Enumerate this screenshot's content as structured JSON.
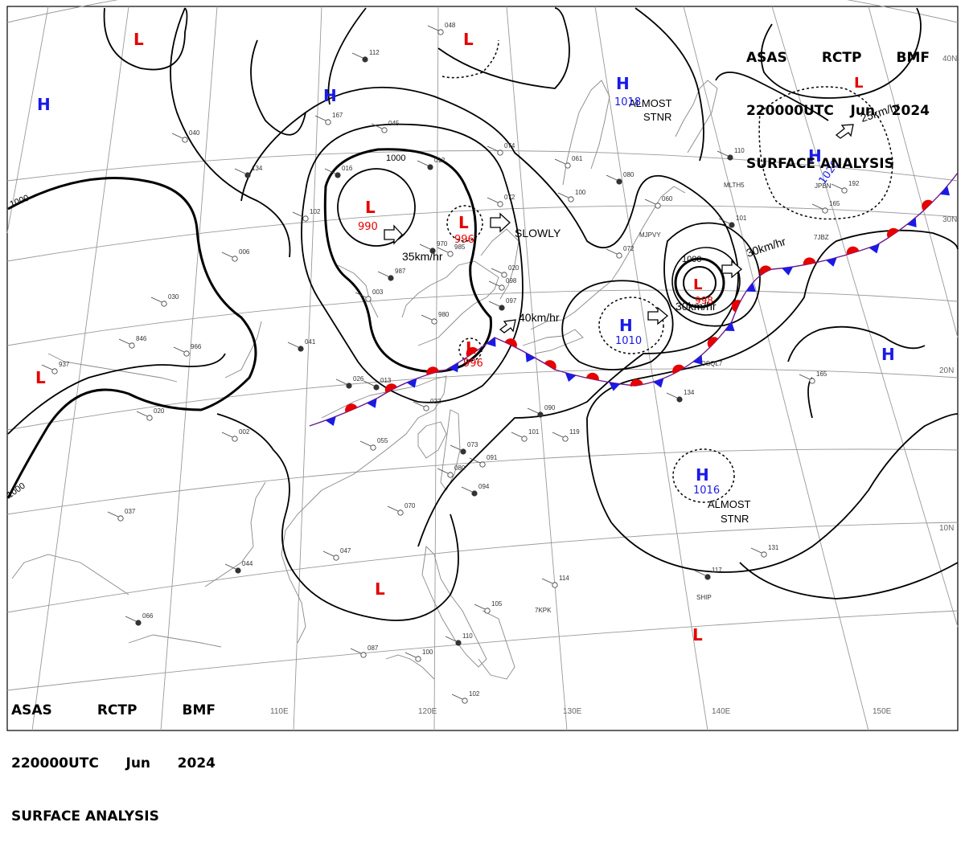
{
  "header": {
    "line1": [
      "ASAS",
      "RCTP",
      "BMF"
    ],
    "line2": [
      "220000UTC",
      "Jun",
      "2024"
    ],
    "line3": "SURFACE ANALYSIS"
  },
  "colors": {
    "high": "#1a1ae6",
    "low": "#e60000",
    "front_warm": "#e60000",
    "front_cold": "#1a1ae6",
    "isobar": "#000000",
    "grid": "#888888",
    "coast": "#888888"
  },
  "longitude_labels": [
    "110E",
    "120E",
    "130E",
    "140E",
    "150E"
  ],
  "latitude_labels": [
    "40N",
    "30N",
    "20N",
    "10N"
  ],
  "isobar_labels": [
    "1000",
    "1000",
    "1000",
    "1000"
  ],
  "pressure_centers": {
    "highs": [
      {
        "symbol": "H",
        "value": ""
      },
      {
        "symbol": "H",
        "value": ""
      },
      {
        "symbol": "H",
        "value": "1018"
      },
      {
        "symbol": "H",
        "value": "1020"
      },
      {
        "symbol": "H",
        "value": "1010"
      },
      {
        "symbol": "H",
        "value": ""
      },
      {
        "symbol": "H",
        "value": "1016"
      }
    ],
    "lows": [
      {
        "symbol": "L",
        "value": ""
      },
      {
        "symbol": "L",
        "value": ""
      },
      {
        "symbol": "L",
        "value": ""
      },
      {
        "symbol": "L",
        "value": "990"
      },
      {
        "symbol": "L",
        "value": "996"
      },
      {
        "symbol": "L",
        "value": "996"
      },
      {
        "symbol": "L",
        "value": "998"
      },
      {
        "symbol": "L",
        "value": ""
      },
      {
        "symbol": "L",
        "value": ""
      },
      {
        "symbol": "L",
        "value": ""
      }
    ]
  },
  "movement_labels": [
    "35km/hr",
    "SLOWLY",
    "40km/hr",
    "30km/hr",
    "30km/hr",
    "25km/hr"
  ],
  "status_labels": [
    {
      "line1": "ALMOST",
      "line2": "STNR"
    },
    {
      "line1": "ALMOST",
      "line2": "STNR"
    }
  ],
  "station_codes": [
    "MLTH5",
    "JPBN",
    "7JBZ",
    "MJPVY",
    "DSQL7",
    "7KPK",
    "SHIP"
  ],
  "station_values": [
    "112",
    "048",
    "040",
    "134",
    "102",
    "167",
    "016",
    "045",
    "074",
    "012",
    "072",
    "061",
    "080",
    "100",
    "060",
    "110",
    "192",
    "165",
    "970",
    "985",
    "020",
    "987",
    "003",
    "098",
    "097",
    "980",
    "072",
    "101",
    "846",
    "966",
    "041",
    "030",
    "020",
    "026",
    "022",
    "055",
    "090",
    "101",
    "119",
    "073",
    "091",
    "080",
    "094",
    "070",
    "047",
    "044",
    "937",
    "037",
    "066",
    "087",
    "100",
    "110",
    "105",
    "102",
    "134",
    "165",
    "114",
    "117",
    "131",
    "002",
    "013",
    "006"
  ]
}
